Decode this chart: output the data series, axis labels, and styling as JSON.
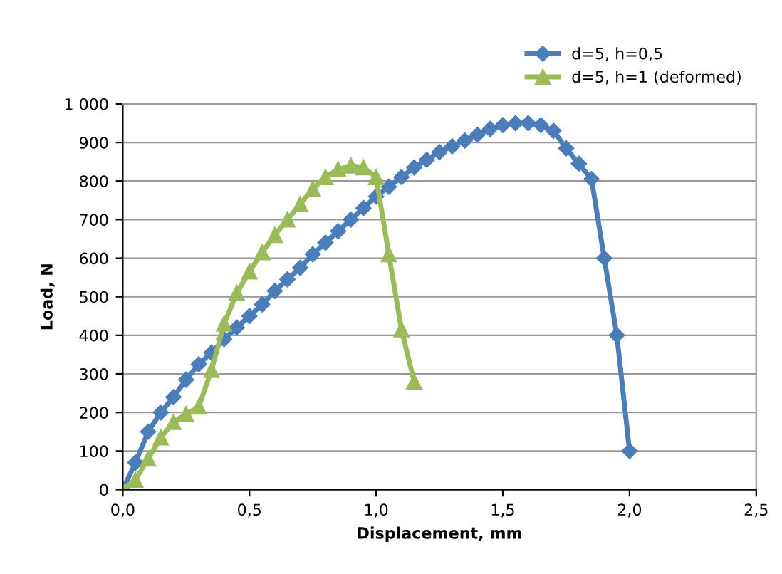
{
  "chart_data": {
    "type": "line",
    "xlabel": "Displacement, mm",
    "ylabel": "Load, N",
    "xlim": [
      0,
      2.5
    ],
    "ylim": [
      0,
      1000
    ],
    "xticks": [
      {
        "value": 0,
        "label": "0,0"
      },
      {
        "value": 0.5,
        "label": "0,5"
      },
      {
        "value": 1,
        "label": "1,0"
      },
      {
        "value": 1.5,
        "label": "1,5"
      },
      {
        "value": 2,
        "label": "2,0"
      },
      {
        "value": 2.5,
        "label": "2,5"
      }
    ],
    "yticks": [
      0,
      100,
      200,
      300,
      400,
      500,
      600,
      700,
      800,
      900,
      {
        "value": 1000,
        "label": "1 000"
      }
    ],
    "grid": "y",
    "legend": "top right",
    "series": [
      {
        "name": "d=5, h=0,5",
        "color": "#4a7ebb",
        "marker": "diamond",
        "x": [
          0,
          0.05,
          0.1,
          0.15,
          0.2,
          0.25,
          0.3,
          0.35,
          0.4,
          0.45,
          0.5,
          0.55,
          0.6,
          0.65,
          0.7,
          0.75,
          0.8,
          0.85,
          0.9,
          0.95,
          1.0,
          1.05,
          1.1,
          1.15,
          1.2,
          1.25,
          1.3,
          1.35,
          1.4,
          1.45,
          1.5,
          1.55,
          1.6,
          1.65,
          1.7,
          1.75,
          1.8,
          1.85,
          1.9,
          1.95,
          2.0
        ],
        "values": [
          0,
          70,
          150,
          200,
          240,
          285,
          325,
          355,
          390,
          420,
          450,
          480,
          515,
          545,
          575,
          610,
          640,
          670,
          700,
          730,
          760,
          785,
          810,
          835,
          855,
          875,
          890,
          905,
          920,
          935,
          945,
          950,
          950,
          945,
          930,
          885,
          845,
          805,
          600,
          400,
          100
        ]
      },
      {
        "name": "d=5, h=1 (deformed)",
        "color": "#9bbb59",
        "marker": "triangle",
        "x": [
          0,
          0.05,
          0.1,
          0.15,
          0.2,
          0.25,
          0.3,
          0.35,
          0.4,
          0.45,
          0.5,
          0.55,
          0.6,
          0.65,
          0.7,
          0.75,
          0.8,
          0.85,
          0.9,
          0.95,
          1.0,
          1.05,
          1.1,
          1.15
        ],
        "values": [
          0,
          25,
          80,
          135,
          175,
          195,
          215,
          310,
          430,
          510,
          565,
          615,
          660,
          700,
          740,
          780,
          810,
          830,
          840,
          835,
          810,
          610,
          415,
          280
        ]
      }
    ]
  }
}
